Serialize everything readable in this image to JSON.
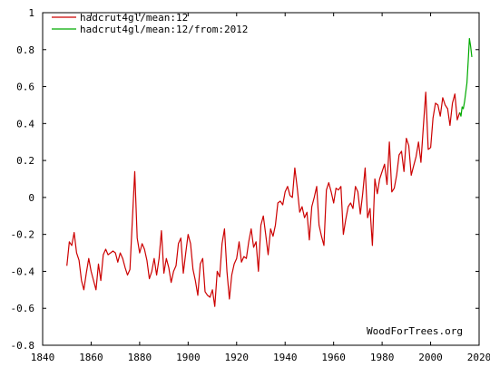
{
  "chart_data": {
    "type": "line",
    "title": "",
    "xlabel": "",
    "ylabel": "",
    "xlim": [
      1840,
      2020
    ],
    "ylim": [
      -0.8,
      1
    ],
    "x_ticks": [
      1840,
      1860,
      1880,
      1900,
      1920,
      1940,
      1960,
      1980,
      2000,
      2020
    ],
    "y_ticks": [
      -0.8,
      -0.6,
      -0.4,
      -0.2,
      0,
      0.2,
      0.4,
      0.6,
      0.8,
      1
    ],
    "y_tick_labels": [
      "-0.8",
      "-0.6",
      "-0.4",
      "-0.2",
      "0",
      "0.2",
      "0.4",
      "0.6",
      "0.8",
      "1"
    ],
    "grid": false,
    "legend_position": "top-left",
    "credit": "WoodForTrees.org",
    "series": [
      {
        "name": "hadcrut4gl/mean:12",
        "color": "#cc0000",
        "points": [
          [
            1850.0,
            -0.37
          ],
          [
            1851.0,
            -0.24
          ],
          [
            1852.0,
            -0.26
          ],
          [
            1853.0,
            -0.19
          ],
          [
            1854.0,
            -0.3
          ],
          [
            1855.0,
            -0.34
          ],
          [
            1856.0,
            -0.45
          ],
          [
            1857.0,
            -0.5
          ],
          [
            1858.0,
            -0.41
          ],
          [
            1859.0,
            -0.33
          ],
          [
            1860.0,
            -0.4
          ],
          [
            1861.0,
            -0.45
          ],
          [
            1862.0,
            -0.5
          ],
          [
            1863.0,
            -0.36
          ],
          [
            1864.0,
            -0.45
          ],
          [
            1865.0,
            -0.31
          ],
          [
            1866.0,
            -0.28
          ],
          [
            1867.0,
            -0.31
          ],
          [
            1868.0,
            -0.3
          ],
          [
            1869.0,
            -0.29
          ],
          [
            1870.0,
            -0.3
          ],
          [
            1871.0,
            -0.35
          ],
          [
            1872.0,
            -0.3
          ],
          [
            1873.0,
            -0.33
          ],
          [
            1874.0,
            -0.38
          ],
          [
            1875.0,
            -0.42
          ],
          [
            1876.0,
            -0.39
          ],
          [
            1877.0,
            -0.12
          ],
          [
            1878.0,
            0.14
          ],
          [
            1879.0,
            -0.22
          ],
          [
            1880.0,
            -0.3
          ],
          [
            1881.0,
            -0.25
          ],
          [
            1882.0,
            -0.28
          ],
          [
            1883.0,
            -0.34
          ],
          [
            1884.0,
            -0.44
          ],
          [
            1885.0,
            -0.4
          ],
          [
            1886.0,
            -0.33
          ],
          [
            1887.0,
            -0.42
          ],
          [
            1888.0,
            -0.33
          ],
          [
            1889.0,
            -0.18
          ],
          [
            1890.0,
            -0.41
          ],
          [
            1891.0,
            -0.33
          ],
          [
            1892.0,
            -0.38
          ],
          [
            1893.0,
            -0.46
          ],
          [
            1894.0,
            -0.4
          ],
          [
            1895.0,
            -0.37
          ],
          [
            1896.0,
            -0.25
          ],
          [
            1897.0,
            -0.22
          ],
          [
            1898.0,
            -0.41
          ],
          [
            1899.0,
            -0.3
          ],
          [
            1900.0,
            -0.2
          ],
          [
            1901.0,
            -0.25
          ],
          [
            1902.0,
            -0.39
          ],
          [
            1903.0,
            -0.45
          ],
          [
            1904.0,
            -0.53
          ],
          [
            1905.0,
            -0.36
          ],
          [
            1906.0,
            -0.33
          ],
          [
            1907.0,
            -0.51
          ],
          [
            1908.0,
            -0.53
          ],
          [
            1909.0,
            -0.54
          ],
          [
            1910.0,
            -0.5
          ],
          [
            1911.0,
            -0.59
          ],
          [
            1912.0,
            -0.4
          ],
          [
            1913.0,
            -0.43
          ],
          [
            1914.0,
            -0.25
          ],
          [
            1915.0,
            -0.17
          ],
          [
            1916.0,
            -0.4
          ],
          [
            1917.0,
            -0.55
          ],
          [
            1918.0,
            -0.42
          ],
          [
            1919.0,
            -0.36
          ],
          [
            1920.0,
            -0.33
          ],
          [
            1921.0,
            -0.24
          ],
          [
            1922.0,
            -0.35
          ],
          [
            1923.0,
            -0.32
          ],
          [
            1924.0,
            -0.33
          ],
          [
            1925.0,
            -0.24
          ],
          [
            1926.0,
            -0.17
          ],
          [
            1927.0,
            -0.27
          ],
          [
            1928.0,
            -0.24
          ],
          [
            1929.0,
            -0.4
          ],
          [
            1930.0,
            -0.15
          ],
          [
            1931.0,
            -0.1
          ],
          [
            1932.0,
            -0.2
          ],
          [
            1933.0,
            -0.31
          ],
          [
            1934.0,
            -0.17
          ],
          [
            1935.0,
            -0.21
          ],
          [
            1936.0,
            -0.15
          ],
          [
            1937.0,
            -0.03
          ],
          [
            1938.0,
            -0.02
          ],
          [
            1939.0,
            -0.04
          ],
          [
            1940.0,
            0.03
          ],
          [
            1941.0,
            0.06
          ],
          [
            1942.0,
            0.01
          ],
          [
            1943.0,
            0.0
          ],
          [
            1944.0,
            0.16
          ],
          [
            1945.0,
            0.05
          ],
          [
            1946.0,
            -0.08
          ],
          [
            1947.0,
            -0.05
          ],
          [
            1948.0,
            -0.11
          ],
          [
            1949.0,
            -0.08
          ],
          [
            1950.0,
            -0.23
          ],
          [
            1951.0,
            -0.05
          ],
          [
            1952.0,
            0.0
          ],
          [
            1953.0,
            0.06
          ],
          [
            1954.0,
            -0.15
          ],
          [
            1955.0,
            -0.21
          ],
          [
            1956.0,
            -0.26
          ],
          [
            1957.0,
            0.04
          ],
          [
            1958.0,
            0.08
          ],
          [
            1959.0,
            0.03
          ],
          [
            1960.0,
            -0.03
          ],
          [
            1961.0,
            0.05
          ],
          [
            1962.0,
            0.04
          ],
          [
            1963.0,
            0.06
          ],
          [
            1964.0,
            -0.2
          ],
          [
            1965.0,
            -0.12
          ],
          [
            1966.0,
            -0.05
          ],
          [
            1967.0,
            -0.03
          ],
          [
            1968.0,
            -0.06
          ],
          [
            1969.0,
            0.06
          ],
          [
            1970.0,
            0.03
          ],
          [
            1971.0,
            -0.09
          ],
          [
            1972.0,
            0.02
          ],
          [
            1973.0,
            0.16
          ],
          [
            1974.0,
            -0.11
          ],
          [
            1975.0,
            -0.06
          ],
          [
            1976.0,
            -0.26
          ],
          [
            1977.0,
            0.1
          ],
          [
            1978.0,
            0.02
          ],
          [
            1979.0,
            0.1
          ],
          [
            1980.0,
            0.14
          ],
          [
            1981.0,
            0.18
          ],
          [
            1982.0,
            0.07
          ],
          [
            1983.0,
            0.3
          ],
          [
            1984.0,
            0.03
          ],
          [
            1985.0,
            0.05
          ],
          [
            1986.0,
            0.12
          ],
          [
            1987.0,
            0.23
          ],
          [
            1988.0,
            0.25
          ],
          [
            1989.0,
            0.14
          ],
          [
            1990.0,
            0.32
          ],
          [
            1991.0,
            0.28
          ],
          [
            1992.0,
            0.12
          ],
          [
            1993.0,
            0.17
          ],
          [
            1994.0,
            0.22
          ],
          [
            1995.0,
            0.3
          ],
          [
            1996.0,
            0.19
          ],
          [
            1997.0,
            0.38
          ],
          [
            1998.0,
            0.57
          ],
          [
            1999.0,
            0.26
          ],
          [
            2000.0,
            0.27
          ],
          [
            2001.0,
            0.43
          ],
          [
            2002.0,
            0.51
          ],
          [
            2003.0,
            0.5
          ],
          [
            2004.0,
            0.44
          ],
          [
            2005.0,
            0.54
          ],
          [
            2006.0,
            0.5
          ],
          [
            2007.0,
            0.48
          ],
          [
            2008.0,
            0.39
          ],
          [
            2009.0,
            0.51
          ],
          [
            2010.0,
            0.56
          ],
          [
            2011.0,
            0.42
          ],
          [
            2012.0,
            0.46
          ]
        ]
      },
      {
        "name": "hadcrut4gl/mean:12/from:2012",
        "color": "#00aa00",
        "points": [
          [
            2012.0,
            0.46
          ],
          [
            2012.5,
            0.44
          ],
          [
            2013.0,
            0.49
          ],
          [
            2013.5,
            0.48
          ],
          [
            2014.0,
            0.52
          ],
          [
            2014.5,
            0.57
          ],
          [
            2015.0,
            0.62
          ],
          [
            2015.5,
            0.74
          ],
          [
            2016.0,
            0.86
          ],
          [
            2016.5,
            0.82
          ],
          [
            2017.0,
            0.76
          ]
        ]
      }
    ]
  }
}
